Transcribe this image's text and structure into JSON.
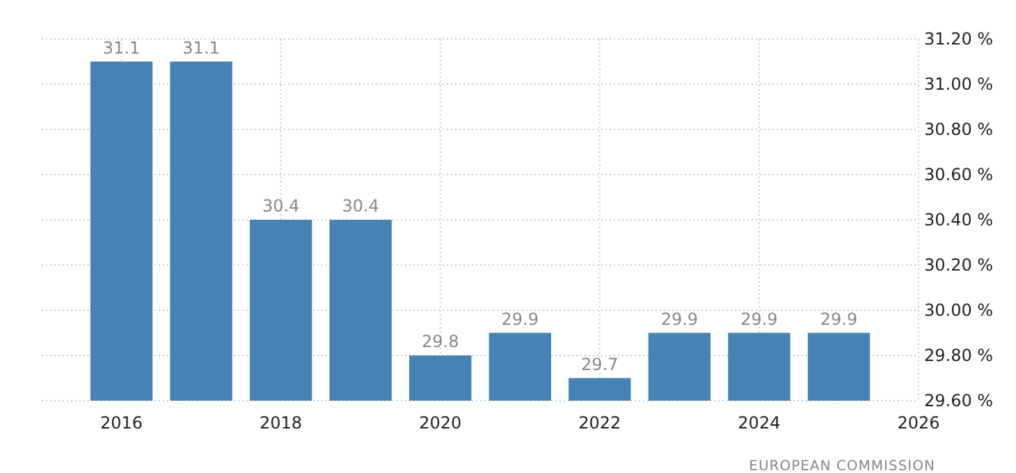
{
  "chart_data": {
    "type": "bar",
    "x": [
      2016,
      2017,
      2018,
      2019,
      2020,
      2021,
      2022,
      2023,
      2024,
      2025
    ],
    "values": [
      31.1,
      31.1,
      30.4,
      30.4,
      29.8,
      29.9,
      29.7,
      29.9,
      29.9,
      29.9
    ],
    "color": "#4682b4",
    "data_labels": true,
    "xlim": [
      2015,
      2026
    ],
    "xticks": [
      2016,
      2018,
      2020,
      2022,
      2024,
      2026
    ],
    "ylim": [
      29.6,
      31.2
    ],
    "yticks": [
      {
        "value": 29.6,
        "label": "29.60 %"
      },
      {
        "value": 29.8,
        "label": "29.80 %"
      },
      {
        "value": 30.0,
        "label": "30.00 %"
      },
      {
        "value": 30.2,
        "label": "30.20 %"
      },
      {
        "value": 30.4,
        "label": "30.40 %"
      },
      {
        "value": 30.6,
        "label": "30.60 %"
      },
      {
        "value": 30.8,
        "label": "30.80 %"
      },
      {
        "value": 31.0,
        "label": "31.00 %"
      },
      {
        "value": 31.2,
        "label": "31.20 %"
      }
    ],
    "grid": true,
    "annotations": [
      "EUROPEAN COMMISSION"
    ]
  }
}
